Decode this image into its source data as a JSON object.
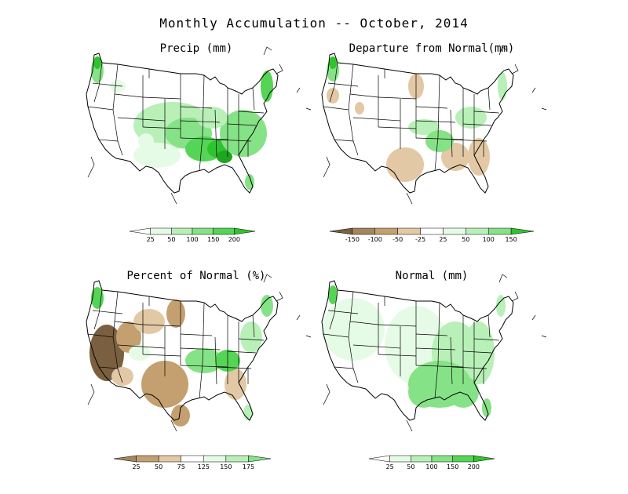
{
  "title": "Monthly Accumulation -- October, 2014",
  "colors": {
    "green_1": "#e6fbe6",
    "green_2": "#b8f0b8",
    "green_3": "#86e286",
    "green_4": "#55d455",
    "green_5": "#2fc42f",
    "green_6": "#1fa61f",
    "brown_1": "#e2c8a4",
    "brown_2": "#c4a070",
    "brown_3": "#a4865e",
    "brown_4": "#7a6040"
  },
  "panels": [
    {
      "id": "precip",
      "title": "Precip (mm)",
      "legend_ticks": [
        "25",
        "50",
        "100",
        "150",
        "200"
      ],
      "legend_scale": "green"
    },
    {
      "id": "departure",
      "title": "Departure from Normal(mm)",
      "legend_ticks": [
        "-150",
        "-100",
        "-50",
        "-25",
        "25",
        "50",
        "100",
        "150"
      ],
      "legend_scale": "diverging"
    },
    {
      "id": "percent",
      "title": "Percent of Normal (%)",
      "legend_ticks": [
        "25",
        "50",
        "75",
        "125",
        "150",
        "175"
      ],
      "legend_scale": "diverging"
    },
    {
      "id": "normal",
      "title": "Normal (mm)",
      "legend_ticks": [
        "25",
        "50",
        "100",
        "150",
        "200"
      ],
      "legend_scale": "green"
    }
  ]
}
